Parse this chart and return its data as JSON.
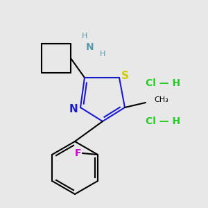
{
  "background_color": "#e8e8e8",
  "bond_color": "#000000",
  "thiazole_color": "#1a1acc",
  "S_color": "#cccc00",
  "N_color": "#1a1acc",
  "NH2_color": "#5599aa",
  "F_color": "#cc00cc",
  "HCl_color": "#22cc22",
  "methyl_text": "CH₃",
  "hcl_text1": "Cl — H",
  "hcl_text2": "Cl — H"
}
